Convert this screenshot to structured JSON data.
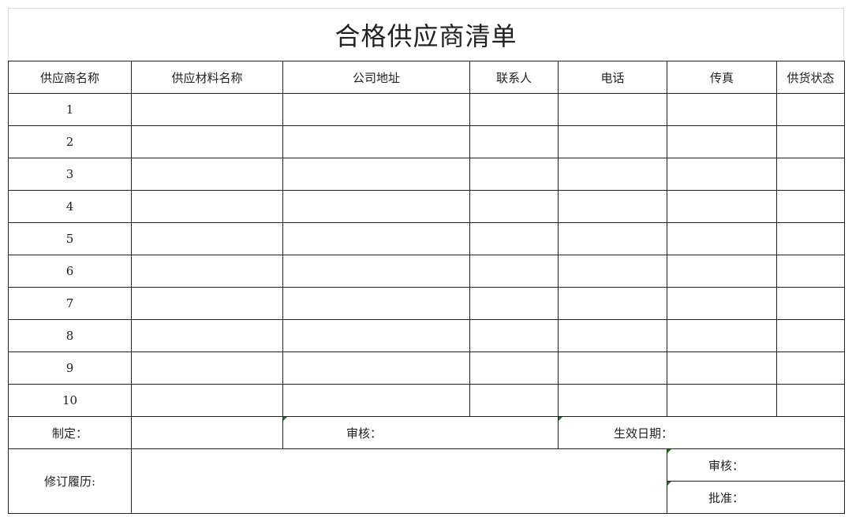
{
  "title": "合格供应商清单",
  "headers": [
    "供应商名称",
    "供应材料名称",
    "公司地址",
    "联系人",
    "电话",
    "传真",
    "供货状态"
  ],
  "rows": [
    "1",
    "2",
    "3",
    "4",
    "5",
    "6",
    "7",
    "8",
    "9",
    "10"
  ],
  "footer": {
    "made_by": "制定：",
    "review": "审核：",
    "effective_date": "生效日期：",
    "revision_history": "修订履历:",
    "review2": "审核：",
    "approve": "批准："
  },
  "colors": {
    "border": "#222222",
    "comment_marker": "#1a7a1a"
  }
}
